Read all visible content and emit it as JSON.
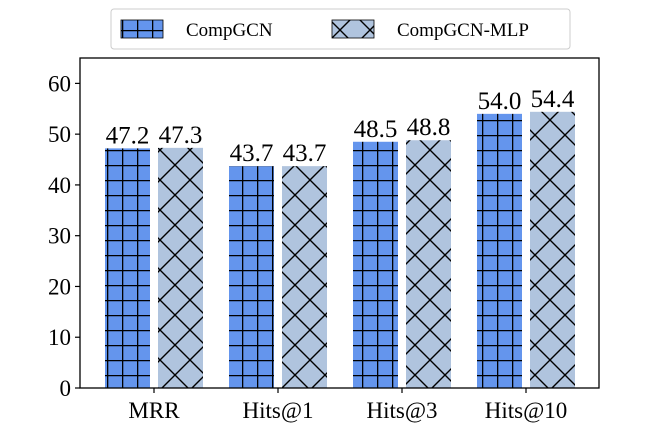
{
  "chart_data": {
    "type": "bar",
    "categories": [
      "MRR",
      "Hits@1",
      "Hits@3",
      "Hits@10"
    ],
    "series": [
      {
        "name": "CompGCN",
        "values": [
          47.2,
          43.7,
          48.5,
          54.0
        ],
        "labels": [
          "47.2",
          "43.7",
          "48.5",
          "54.0"
        ],
        "color": "#6495ED",
        "hatch": "grid"
      },
      {
        "name": "CompGCN-MLP",
        "values": [
          47.3,
          43.7,
          48.8,
          54.4
        ],
        "labels": [
          "47.3",
          "43.7",
          "48.8",
          "54.4"
        ],
        "color": "#B0C4DE",
        "hatch": "cross-diagonal"
      }
    ],
    "yticks": [
      "0",
      "10",
      "20",
      "30",
      "40",
      "50",
      "60"
    ],
    "ylim": [
      0,
      65
    ],
    "legend_position": "top-center",
    "grid": false
  }
}
